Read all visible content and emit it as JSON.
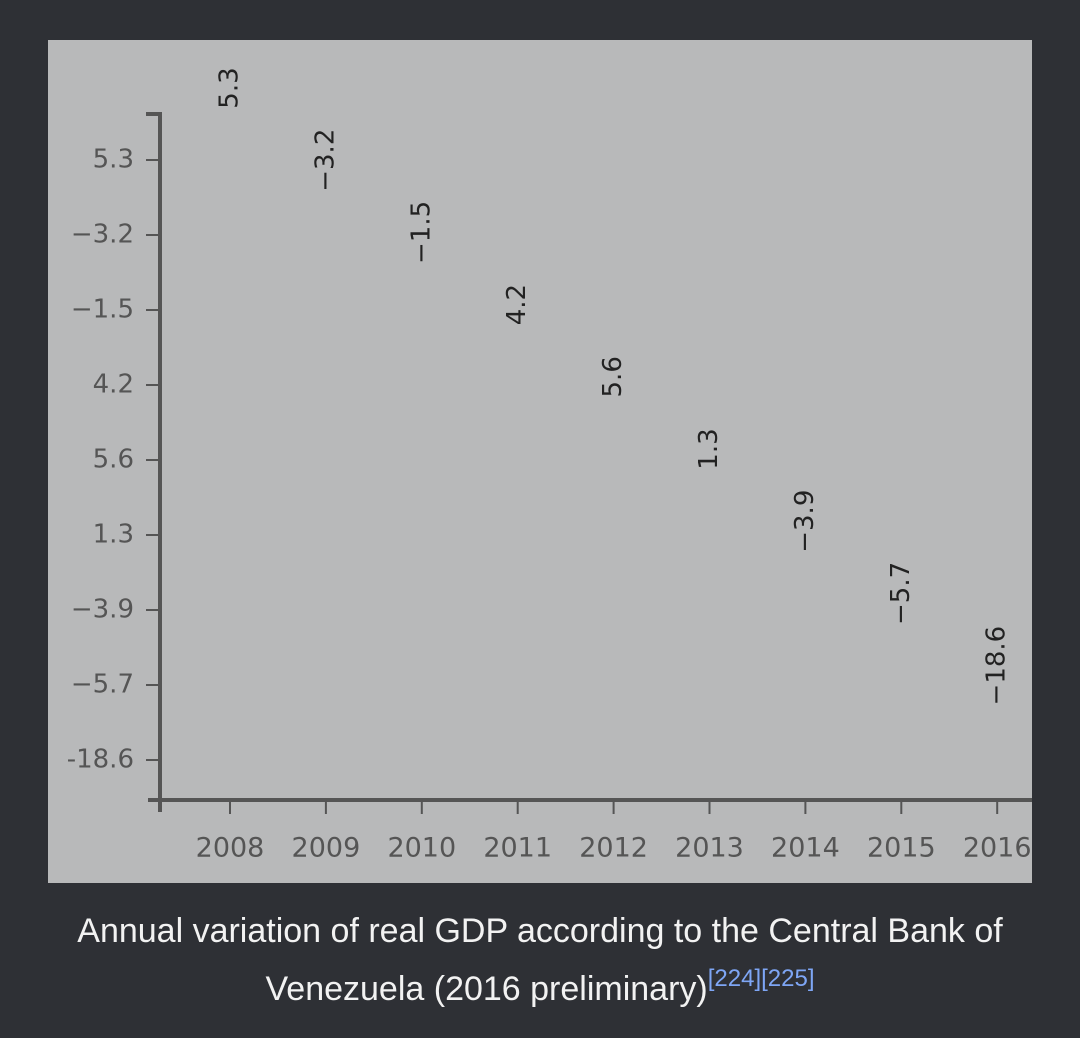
{
  "chart_data": {
    "type": "label-column",
    "categories": [
      "2008",
      "2009",
      "2010",
      "2011",
      "2012",
      "2013",
      "2014",
      "2015",
      "2016"
    ],
    "values": [
      5.3,
      -3.2,
      -1.5,
      4.2,
      5.6,
      1.3,
      -3.9,
      -5.7,
      -18.6
    ],
    "value_labels": [
      "5.3",
      "−3.2",
      "−1.5",
      "4.2",
      "5.6",
      "1.3",
      "−3.9",
      "−5.7",
      "−18.6"
    ],
    "ycategories": [
      "5.3",
      "−3.2",
      "−1.5",
      "4.2",
      "5.6",
      "1.3",
      "−3.9",
      "−5.7",
      "-18.6"
    ],
    "color": "#222222"
  },
  "caption": {
    "text": "Annual variation of real GDP according to the Central Bank of Venezuela (2016 preliminary)",
    "refs": [
      "[224]",
      "[225]"
    ]
  }
}
